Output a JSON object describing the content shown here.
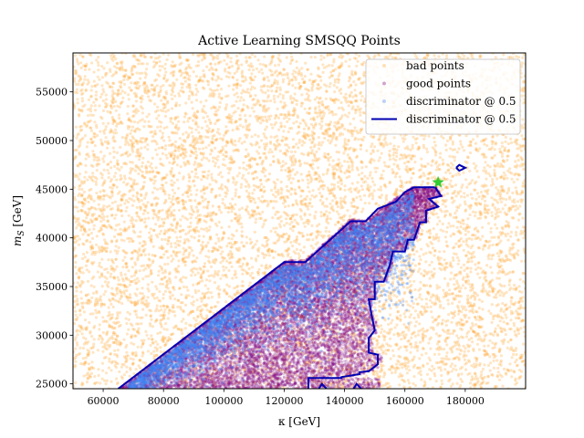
{
  "chart_data": {
    "type": "scatter",
    "title": "Active Learning SMSQQ Points",
    "xlabel": "κ [GeV]",
    "ylabel": "m_S [GeV]",
    "xlim": [
      50000,
      200000
    ],
    "ylim": [
      24500,
      59000
    ],
    "xticks": [
      60000,
      80000,
      100000,
      120000,
      140000,
      160000,
      180000
    ],
    "yticks": [
      25000,
      30000,
      35000,
      40000,
      45000,
      50000,
      55000
    ],
    "xtick_labels": [
      "60000",
      "80000",
      "100000",
      "120000",
      "140000",
      "160000",
      "180000"
    ],
    "ytick_labels": [
      "25000",
      "30000",
      "35000",
      "40000",
      "45000",
      "50000",
      "55000"
    ],
    "grid": false,
    "legend_position": "top-right",
    "legend": [
      {
        "label": "bad points",
        "marker": "dot",
        "color": "#ffa329"
      },
      {
        "label": "good points",
        "marker": "dot",
        "color": "#800080"
      },
      {
        "label": "discriminator @ 0.5",
        "marker": "dot",
        "color": "#3d85f5"
      },
      {
        "label": "discriminator @ 0.5",
        "marker": "line",
        "color": "#0000b3"
      }
    ],
    "series": [
      {
        "name": "bad points",
        "color": "#ffa329",
        "region": "uniform over full axis range",
        "approx_count": 9000
      },
      {
        "name": "good points",
        "color": "#800080",
        "region": "wedge below boundary line",
        "approx_count": 16000
      },
      {
        "name": "discriminator @ 0.5",
        "color": "#3d85f5",
        "region": "upper part of good wedge",
        "approx_count": 5500
      }
    ],
    "boundary_contour": {
      "name": "discriminator @ 0.5",
      "color": "#0000b3",
      "points": [
        [
          65000,
          24500
        ],
        [
          120000,
          37500
        ],
        [
          127000,
          37500
        ],
        [
          142000,
          41700
        ],
        [
          147000,
          41700
        ],
        [
          151000,
          43000
        ],
        [
          157000,
          43700
        ],
        [
          160000,
          44700
        ],
        [
          163000,
          45200
        ],
        [
          170000,
          45200
        ],
        [
          172000,
          44300
        ],
        [
          168000,
          44000
        ],
        [
          171000,
          43200
        ],
        [
          167000,
          42800
        ],
        [
          167000,
          41600
        ],
        [
          165000,
          41600
        ],
        [
          163000,
          39800
        ],
        [
          161000,
          39800
        ],
        [
          160000,
          38600
        ],
        [
          156000,
          38600
        ],
        [
          155000,
          37200
        ],
        [
          153000,
          35500
        ],
        [
          150000,
          35500
        ],
        [
          150000,
          33700
        ],
        [
          148000,
          33700
        ],
        [
          149000,
          32000
        ],
        [
          150000,
          30500
        ],
        [
          148000,
          29700
        ],
        [
          148000,
          28200
        ],
        [
          151000,
          28000
        ],
        [
          151000,
          27000
        ],
        [
          148000,
          26300
        ],
        [
          145000,
          26200
        ],
        [
          145000,
          26000
        ],
        [
          139000,
          25700
        ],
        [
          139000,
          25600
        ],
        [
          128000,
          25600
        ],
        [
          128000,
          24500
        ]
      ],
      "extra_loops": [
        [
          [
            177000,
            47200
          ],
          [
            178000,
            46900
          ],
          [
            180000,
            47200
          ],
          [
            178000,
            47500
          ],
          [
            177000,
            47200
          ]
        ],
        [
          [
            131500,
            24500
          ],
          [
            132500,
            25000
          ],
          [
            134000,
            24500
          ]
        ],
        [
          [
            143000,
            24500
          ],
          [
            144000,
            25000
          ],
          [
            145500,
            24500
          ]
        ]
      ]
    },
    "highlight_point": {
      "x": 171000,
      "y": 45700,
      "marker": "star",
      "color": "#33cc33"
    }
  }
}
